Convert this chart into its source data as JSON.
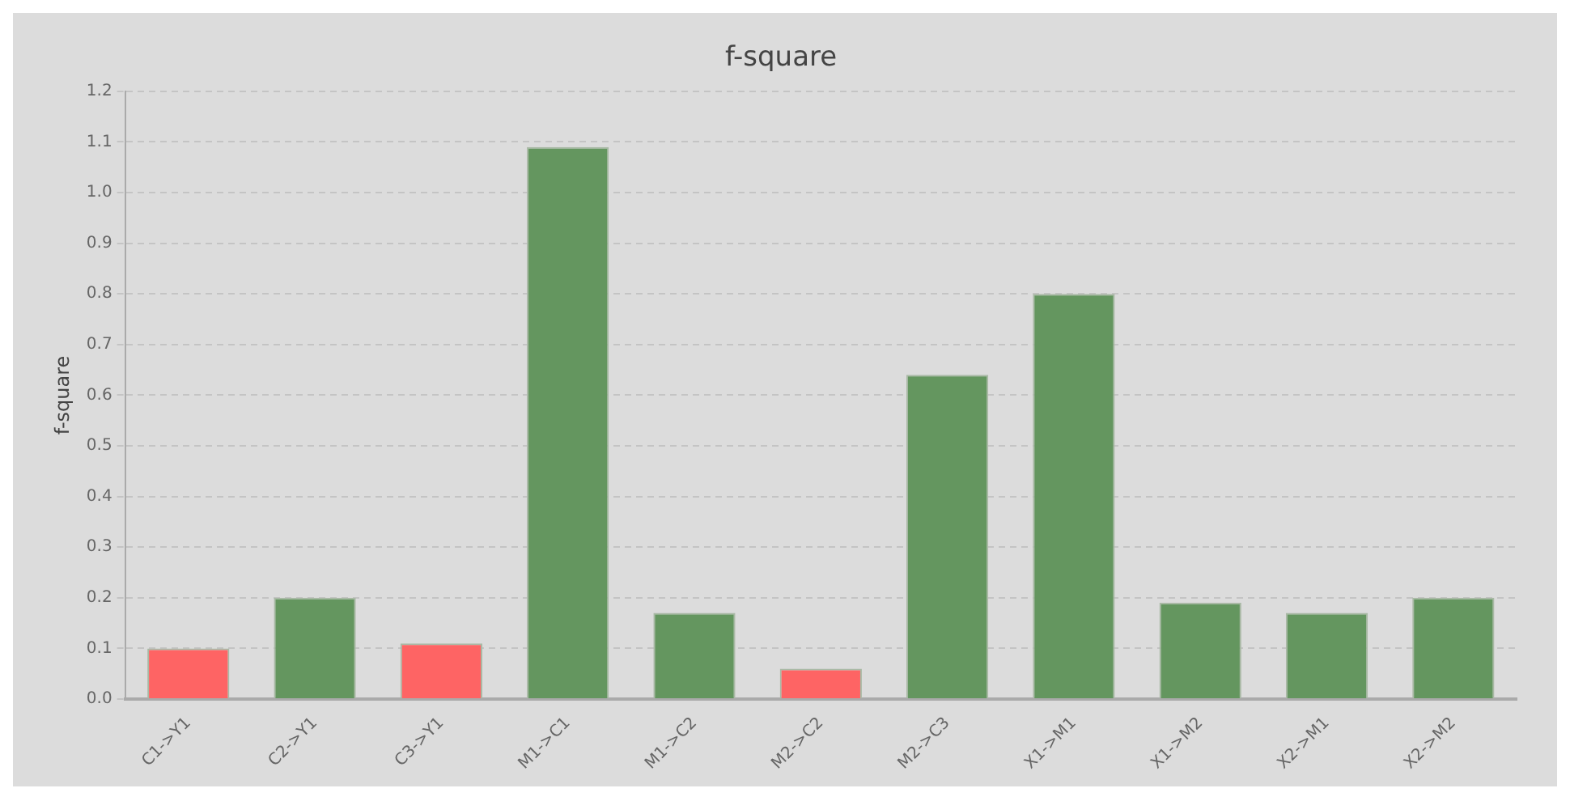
{
  "chart_data": {
    "type": "bar",
    "title": "f-square",
    "ylabel": "f-square",
    "categories": [
      "C1->Y1",
      "C2->Y1",
      "C3->Y1",
      "M1->C1",
      "M1->C2",
      "M2->C2",
      "M2->C3",
      "X1->M1",
      "X1->M2",
      "X2->M1",
      "X2->M2"
    ],
    "values": [
      0.1,
      0.2,
      0.11,
      1.09,
      0.17,
      0.06,
      0.64,
      0.8,
      0.19,
      0.17,
      0.2
    ],
    "colors": [
      "#fe6464",
      "#64965f",
      "#fe6464",
      "#64965f",
      "#64965f",
      "#fe6464",
      "#64965f",
      "#64965f",
      "#64965f",
      "#64965f",
      "#64965f"
    ],
    "ylim": [
      0,
      1.2
    ],
    "yticks": [
      {
        "value": 0,
        "label": "0.0"
      },
      0.1,
      0.2,
      0.3,
      0.4,
      0.5,
      0.6,
      0.7,
      0.8,
      0.9,
      {
        "value": 1,
        "label": "1.0"
      },
      1.1,
      1.2
    ],
    "grid": "y",
    "legend": false
  }
}
